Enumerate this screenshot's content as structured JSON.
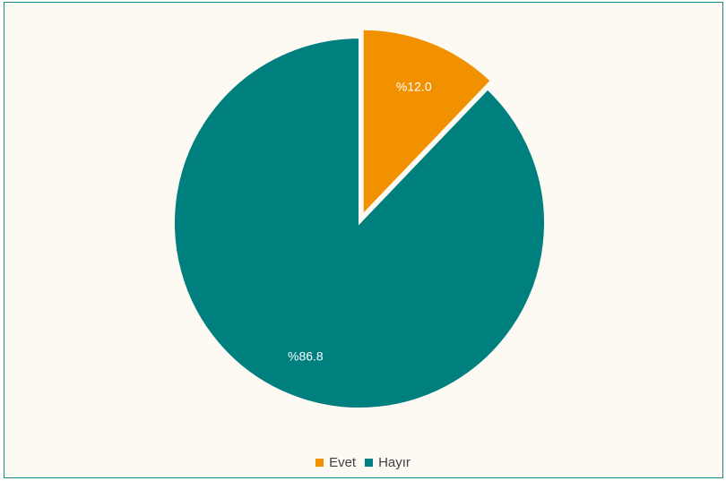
{
  "chart_data": {
    "type": "pie",
    "categories": [
      "Evet",
      "Hayır"
    ],
    "values": [
      12.0,
      86.8
    ],
    "data_labels": [
      "%12.0",
      "%86.8"
    ],
    "colors": [
      "#f29100",
      "#007f7f"
    ],
    "exploded": [
      "Evet"
    ],
    "legend_position": "bottom"
  }
}
